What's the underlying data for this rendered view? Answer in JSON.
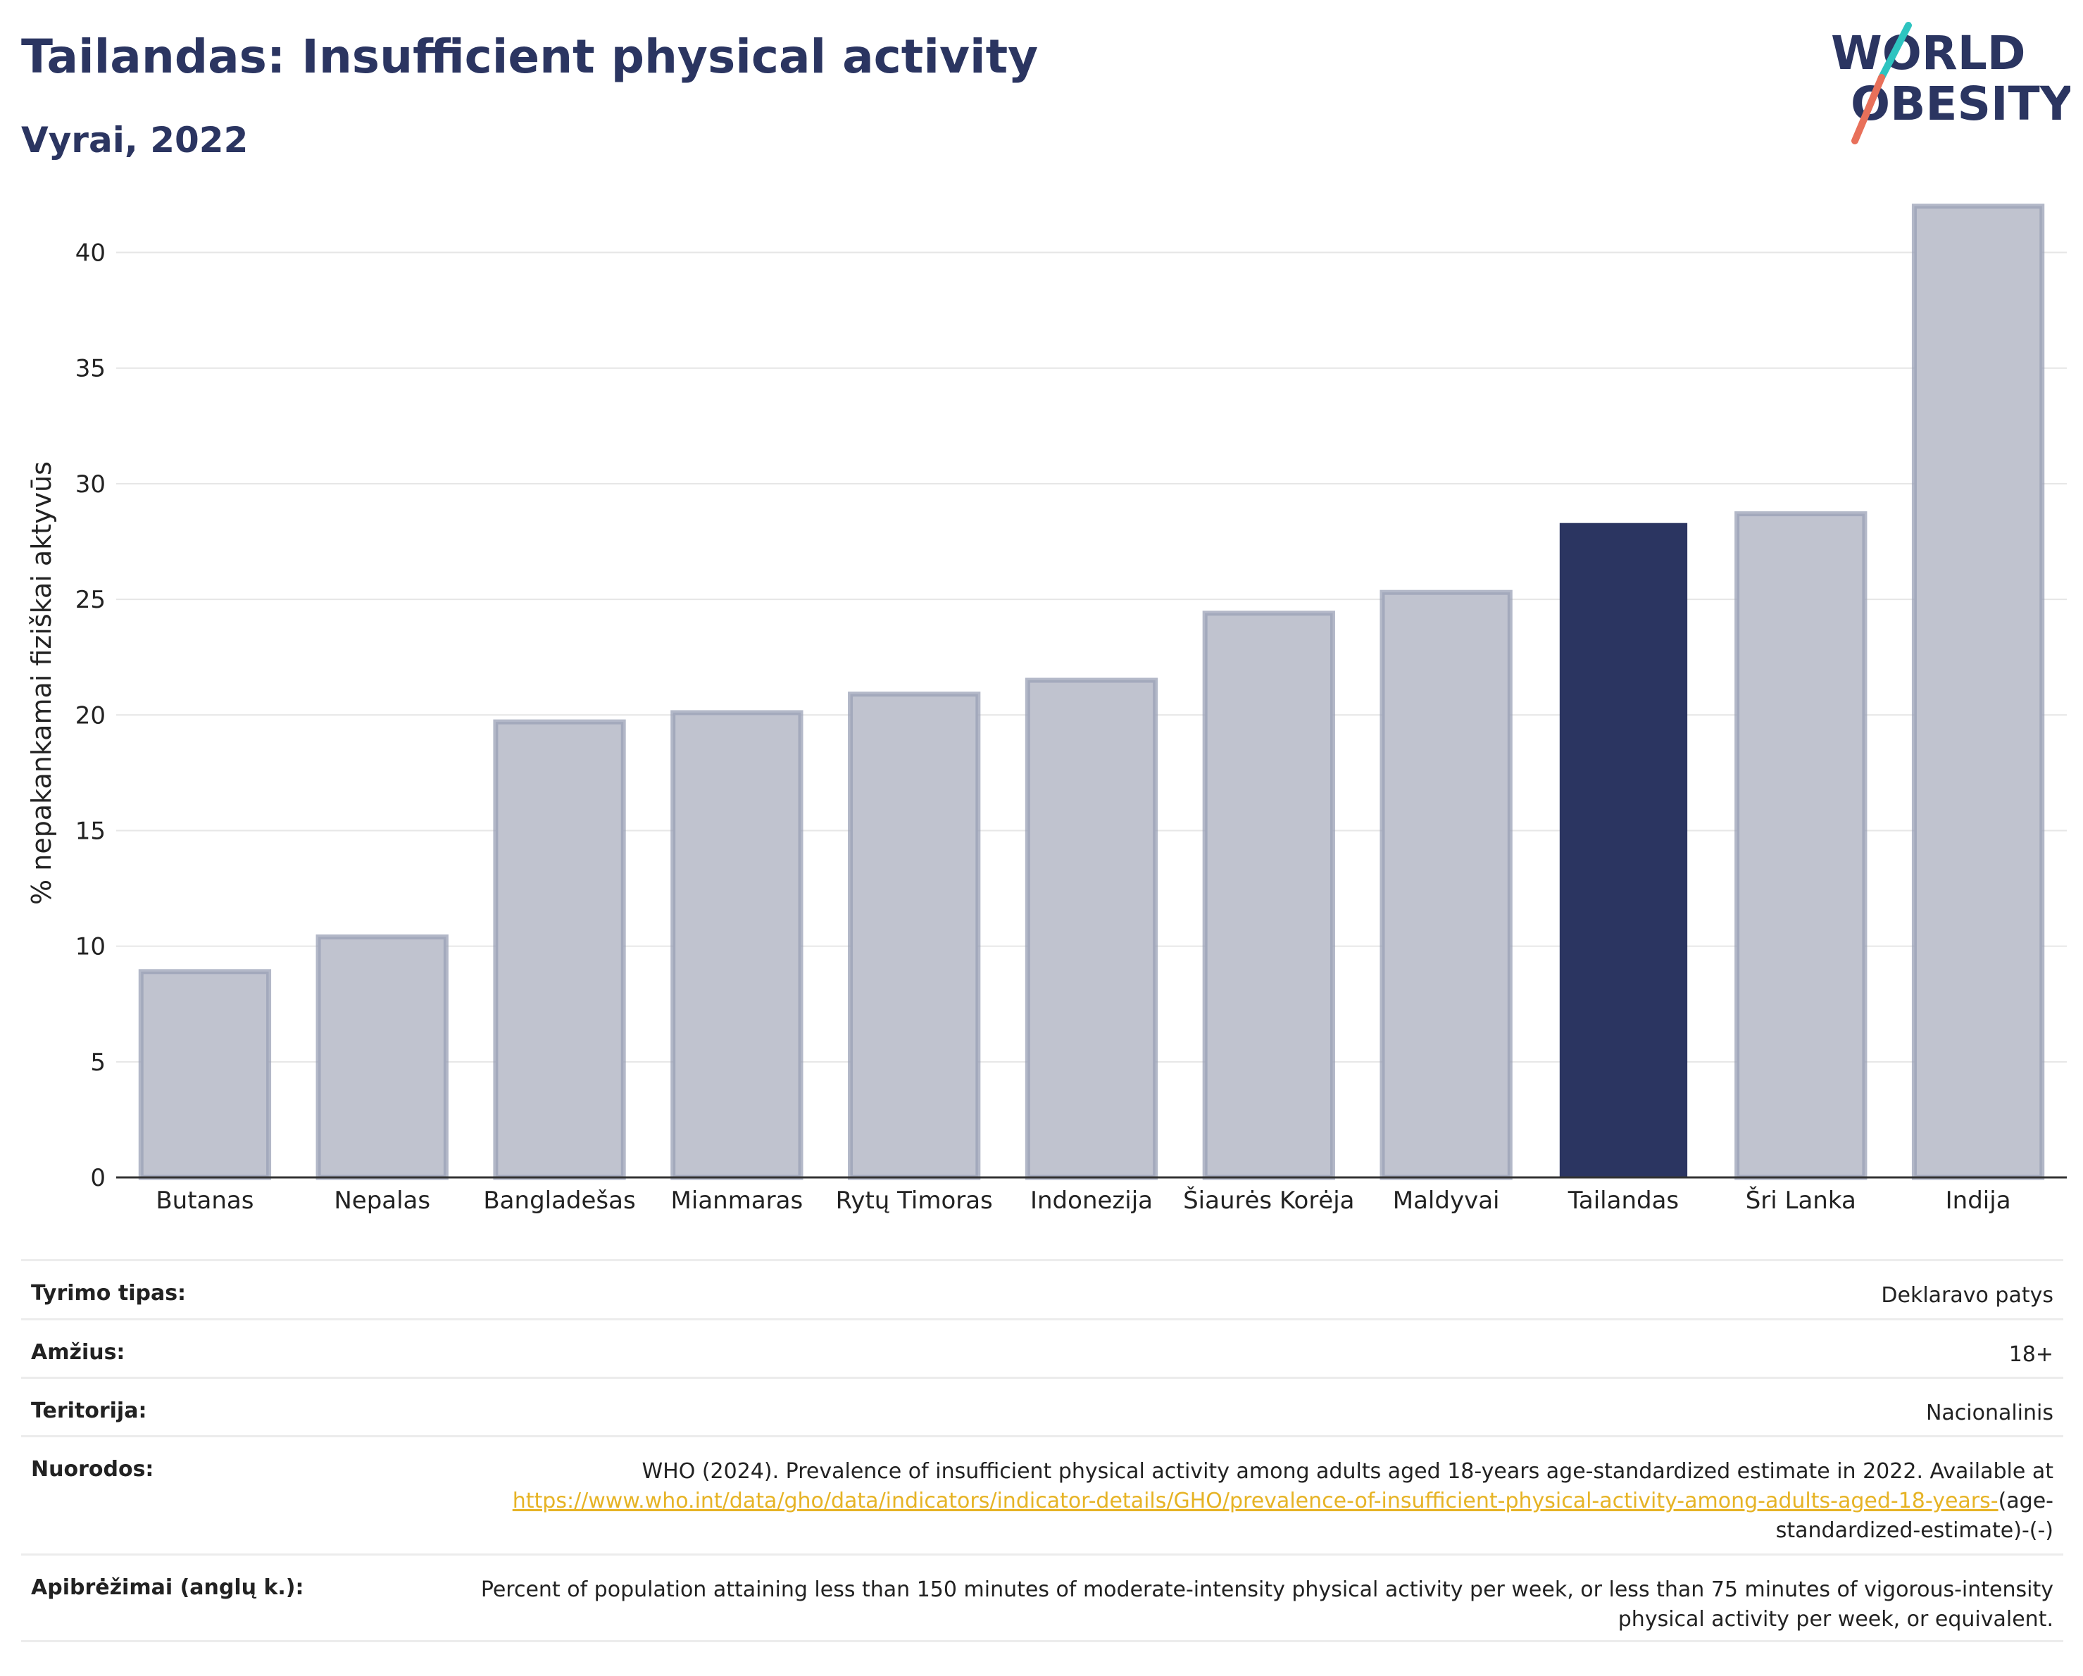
{
  "header": {
    "title": "Tailandas: Insufficient physical activity",
    "subtitle": "Vyrai, 2022"
  },
  "logo": {
    "line1": "WORLD",
    "line2": "OBESITY",
    "accent_colors": [
      "#2ec4c0",
      "#e8705a"
    ]
  },
  "chart_data": {
    "type": "bar",
    "ylabel": "% nepakankamai fiziškai aktyvūs",
    "ylim": [
      0,
      43
    ],
    "yticks": [
      0,
      5,
      10,
      15,
      20,
      25,
      30,
      35,
      40
    ],
    "grid": true,
    "categories": [
      "Butanas",
      "Nepalas",
      "Bangladešas",
      "Mianmaras",
      "Rytų Timoras",
      "Indonezija",
      "Šiaurės Korėja",
      "Maldyvai",
      "Tailandas",
      "Šri Lanka",
      "Indija"
    ],
    "values": [
      8.9,
      10.4,
      19.7,
      20.1,
      20.9,
      21.5,
      24.4,
      25.3,
      28.3,
      28.7,
      42.0
    ],
    "highlight": "Tailandas",
    "colors": {
      "highlight": "#2b3561",
      "default": "#c0c3cf",
      "default_border": "#9aa0b5"
    }
  },
  "meta": {
    "rows": [
      {
        "label": "Tyrimo tipas:",
        "value": "Deklaravo patys"
      },
      {
        "label": "Amžius:",
        "value": "18+"
      },
      {
        "label": "Teritorija:",
        "value": "Nacionalinis"
      },
      {
        "label": "Nuorodos:",
        "value": "WHO (2024). Prevalence of insufficient physical activity among adults aged 18-years age-standardized estimate in 2022. Available at",
        "link": "https://www.who.int/data/gho/data/indicators/indicator-details/GHO/prevalence-of-insufficient-physical-activity-among-adults-aged-18-years-",
        "value_after": "(age-standardized-estimate)-(-)"
      },
      {
        "label": "Apibrėžimai (anglų k.):",
        "value": "Percent of population attaining less than 150 minutes of moderate-intensity physical activity per week, or less than 75 minutes of vigorous-intensity physical activity per week, or equivalent."
      }
    ]
  }
}
